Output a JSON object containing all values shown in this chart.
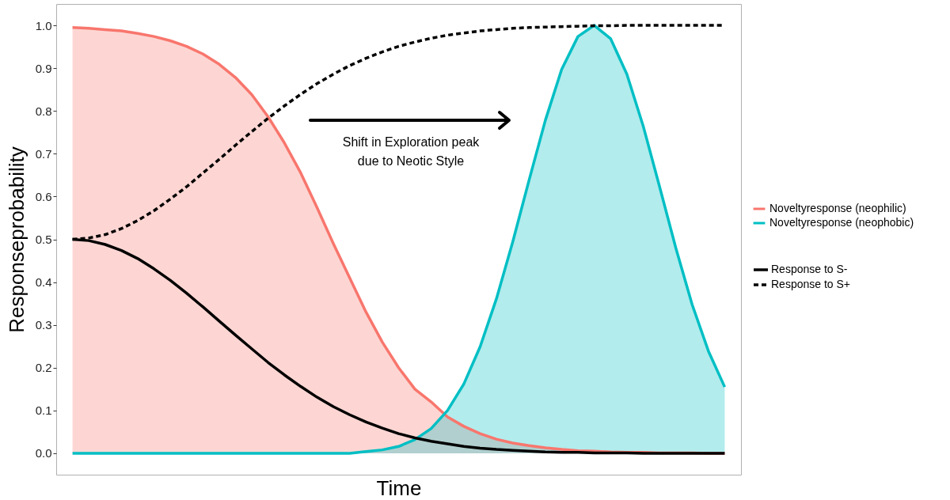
{
  "chart_data": {
    "type": "line",
    "xlabel": "Time",
    "ylabel": "Responseprobability",
    "categories": [
      null,
      null,
      null,
      null,
      null,
      null,
      null,
      null,
      null,
      null,
      null,
      null,
      null,
      null,
      null,
      null,
      null,
      null,
      null,
      null,
      null,
      null,
      null,
      null,
      null,
      null,
      null,
      null,
      null,
      null,
      null,
      null,
      null,
      null,
      null,
      null,
      null,
      null,
      null,
      null,
      null
    ],
    "series": [
      {
        "name": "Noveltyresponse (neophilic)",
        "color": "#f8766d",
        "type": "area",
        "line_style": "solid",
        "values": [
          0.995,
          0.993,
          0.99,
          0.987,
          0.981,
          0.974,
          0.964,
          0.951,
          0.933,
          0.909,
          0.878,
          0.838,
          0.786,
          0.725,
          0.655,
          0.574,
          0.49,
          0.41,
          0.33,
          0.26,
          0.2,
          0.15,
          0.12,
          0.085,
          0.063,
          0.046,
          0.033,
          0.024,
          0.018,
          0.013,
          0.009,
          0.006,
          0.005,
          0.003,
          0.002,
          0.002,
          0.001,
          0.001,
          0.001,
          0,
          0
        ]
      },
      {
        "name": "Noveltyresponse (neophobic)",
        "color": "#00bfc4",
        "type": "area",
        "line_style": "solid",
        "values": [
          0,
          0,
          0,
          0,
          0,
          0,
          0,
          0,
          0,
          0,
          0,
          0,
          0,
          0,
          0,
          0,
          0,
          0,
          0.004,
          0.008,
          0.016,
          0.032,
          0.058,
          0.1,
          0.162,
          0.249,
          0.361,
          0.494,
          0.638,
          0.778,
          0.897,
          0.974,
          1,
          0.969,
          0.886,
          0.765,
          0.624,
          0.48,
          0.348,
          0.239,
          0.155
        ]
      },
      {
        "name": "Response to S-",
        "color": "#000000",
        "type": "line",
        "line_style": "solid",
        "values": [
          0.5,
          0.497,
          0.488,
          0.474,
          0.455,
          0.431,
          0.404,
          0.374,
          0.342,
          0.309,
          0.276,
          0.244,
          0.212,
          0.183,
          0.156,
          0.131,
          0.109,
          0.09,
          0.073,
          0.059,
          0.046,
          0.036,
          0.028,
          0.022,
          0.016,
          0.012,
          0.009,
          0.007,
          0.005,
          0.003,
          0.002,
          0.002,
          0.001,
          0.001,
          0.001,
          0,
          0,
          0,
          0,
          0,
          0
        ]
      },
      {
        "name": "Response to S+",
        "color": "#000000",
        "type": "line",
        "line_style": "dashed",
        "values": [
          0.5,
          0.503,
          0.511,
          0.525,
          0.544,
          0.567,
          0.594,
          0.623,
          0.655,
          0.687,
          0.72,
          0.752,
          0.783,
          0.812,
          0.839,
          0.864,
          0.886,
          0.906,
          0.923,
          0.938,
          0.951,
          0.961,
          0.97,
          0.977,
          0.982,
          0.987,
          0.99,
          0.993,
          0.995,
          0.996,
          0.997,
          0.998,
          0.999,
          0.999,
          1,
          1,
          1,
          1,
          1,
          1,
          1
        ]
      }
    ],
    "ylim": [
      -0.05,
      1.05
    ],
    "yticks": [
      {
        "value": 0,
        "label": "0.0"
      },
      {
        "value": 0.1,
        "label": "0.1"
      },
      {
        "value": 0.2,
        "label": "0.2"
      },
      {
        "value": 0.3,
        "label": "0.3"
      },
      {
        "value": 0.4,
        "label": "0.4"
      },
      {
        "value": 0.5,
        "label": "0.5"
      },
      {
        "value": 0.6,
        "label": "0.6"
      },
      {
        "value": 0.7,
        "label": "0.7"
      },
      {
        "value": 0.8,
        "label": "0.8"
      },
      {
        "value": 0.9,
        "label": "0.9"
      },
      {
        "value": 1,
        "label": "1.0"
      }
    ],
    "tick_labels": "y",
    "grid": false,
    "legend": "right",
    "marker": "none",
    "annotations": [
      "Shift in Exploration peak due to Neotic Style"
    ]
  }
}
